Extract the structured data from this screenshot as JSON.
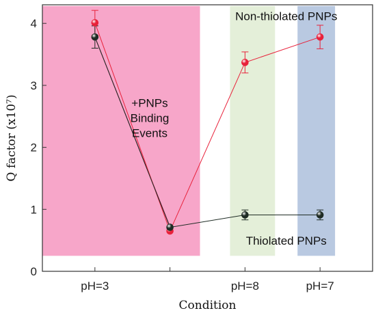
{
  "chart_data": {
    "type": "scatter",
    "xlabel": "Condition",
    "ylabel": "Q factor (x10⁷)",
    "ylim": [
      0,
      4.3
    ],
    "xlim": [
      0.3,
      4.7
    ],
    "yticks": [
      "0",
      "1",
      "2",
      "3",
      "4"
    ],
    "categories": [
      {
        "label": "pH=3",
        "x": 1
      },
      {
        "label": "",
        "x": 2
      },
      {
        "label": "pH=8",
        "x": 3
      },
      {
        "label": "pH=7",
        "x": 4
      }
    ],
    "shaded_regions": [
      {
        "x0": 0.3,
        "x1": 2.4,
        "y0": 0.25,
        "y1": 4.28,
        "color": "#f7a6c9"
      },
      {
        "x0": 2.8,
        "x1": 3.4,
        "y0": 0.25,
        "y1": 4.28,
        "color": "#e4efd9"
      },
      {
        "x0": 3.7,
        "x1": 4.2,
        "y0": 0.25,
        "y1": 4.28,
        "color": "#b9c9e1"
      }
    ],
    "series": [
      {
        "name": "Non-thiolated PNPs",
        "color": "#e8213a",
        "x": [
          1,
          2,
          3,
          4
        ],
        "y": [
          4.01,
          0.65,
          3.37,
          3.78
        ],
        "err": [
          0.2,
          0,
          0.17,
          0.19
        ]
      },
      {
        "name": "Thiolated PNPs",
        "color": "#1e2b24",
        "x": [
          1,
          2,
          3,
          4
        ],
        "y": [
          3.78,
          0.71,
          0.91,
          0.91
        ],
        "err": [
          0.18,
          0,
          0.08,
          0.08
        ]
      }
    ],
    "extra_lines": [
      {
        "color": "#a1003a",
        "x": [
          1,
          2
        ],
        "y": [
          3.78,
          0.72
        ]
      }
    ],
    "annotations": [
      {
        "lines": [
          "+PNPs",
          "Binding",
          "Events"
        ],
        "x": 1.73,
        "y": 2.65
      },
      {
        "lines": [
          "Non-thiolated PNPs"
        ],
        "x": 3.55,
        "y": 4.05
      },
      {
        "lines": [
          "Thiolated PNPs"
        ],
        "x": 3.55,
        "y": 0.43
      }
    ]
  }
}
